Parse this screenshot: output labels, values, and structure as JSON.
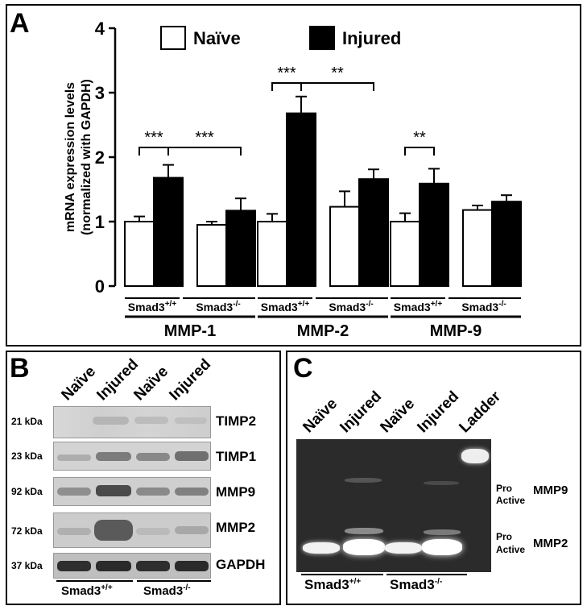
{
  "panel_a": {
    "label": "A",
    "legend": {
      "naive": "Naïve",
      "injured": "Injured"
    },
    "ylabel_line1": "mRNA expression levels",
    "ylabel_line2": "(normalized with GAPDH)",
    "genotype_wt": "Smad3",
    "genotype_wt_sup": "+/+",
    "genotype_ko": "Smad3",
    "genotype_ko_sup": "-/-",
    "groups": [
      "MMP-1",
      "MMP-2",
      "MMP-9"
    ],
    "significance": [
      {
        "label": "***"
      },
      {
        "label": "***"
      },
      {
        "label": "***"
      },
      {
        "label": "**"
      },
      {
        "label": "**"
      }
    ]
  },
  "chart_data": {
    "type": "bar",
    "ylabel": "mRNA expression levels (normalized with GAPDH)",
    "ylim": [
      0,
      4
    ],
    "yticks": [
      0,
      1,
      2,
      3,
      4
    ],
    "groups": [
      "MMP-1",
      "MMP-2",
      "MMP-9"
    ],
    "subgroups": [
      "Smad3+/+",
      "Smad3-/-"
    ],
    "series": [
      {
        "name": "Naïve",
        "color": "#ffffff",
        "values": [
          [
            1.0,
            0.95
          ],
          [
            1.0,
            1.23
          ],
          [
            1.0,
            1.18
          ]
        ],
        "errors": [
          [
            0.08,
            0.05
          ],
          [
            0.12,
            0.24
          ],
          [
            0.13,
            0.07
          ]
        ]
      },
      {
        "name": "Injured",
        "color": "#000000",
        "values": [
          [
            1.68,
            1.17
          ],
          [
            2.68,
            1.66
          ],
          [
            1.59,
            1.31
          ]
        ],
        "errors": [
          [
            0.2,
            0.19
          ],
          [
            0.26,
            0.15
          ],
          [
            0.23,
            0.1
          ]
        ]
      }
    ]
  },
  "panel_b": {
    "label": "B",
    "lanes": [
      "Naïve",
      "Injured",
      "Naïve",
      "Injured"
    ],
    "rows": [
      {
        "kda": "21 kDa",
        "protein": "TIMP2"
      },
      {
        "kda": "23 kDa",
        "protein": "TIMP1"
      },
      {
        "kda": "92 kDa",
        "protein": "MMP9"
      },
      {
        "kda": "72 kDa",
        "protein": "MMP2"
      },
      {
        "kda": "37 kDa",
        "protein": "GAPDH"
      }
    ],
    "genotype": "Smad3",
    "wt_sup": "+/+",
    "ko_sup": "-/-"
  },
  "panel_c": {
    "label": "C",
    "lanes": [
      "Naïve",
      "Injured",
      "Naïve",
      "Injured",
      "Ladder"
    ],
    "pro": "Pro",
    "active": "Active",
    "mmp9": "MMP9",
    "mmp2": "MMP2",
    "genotype": "Smad3",
    "wt_sup": "+/+",
    "ko_sup": "-/-"
  }
}
